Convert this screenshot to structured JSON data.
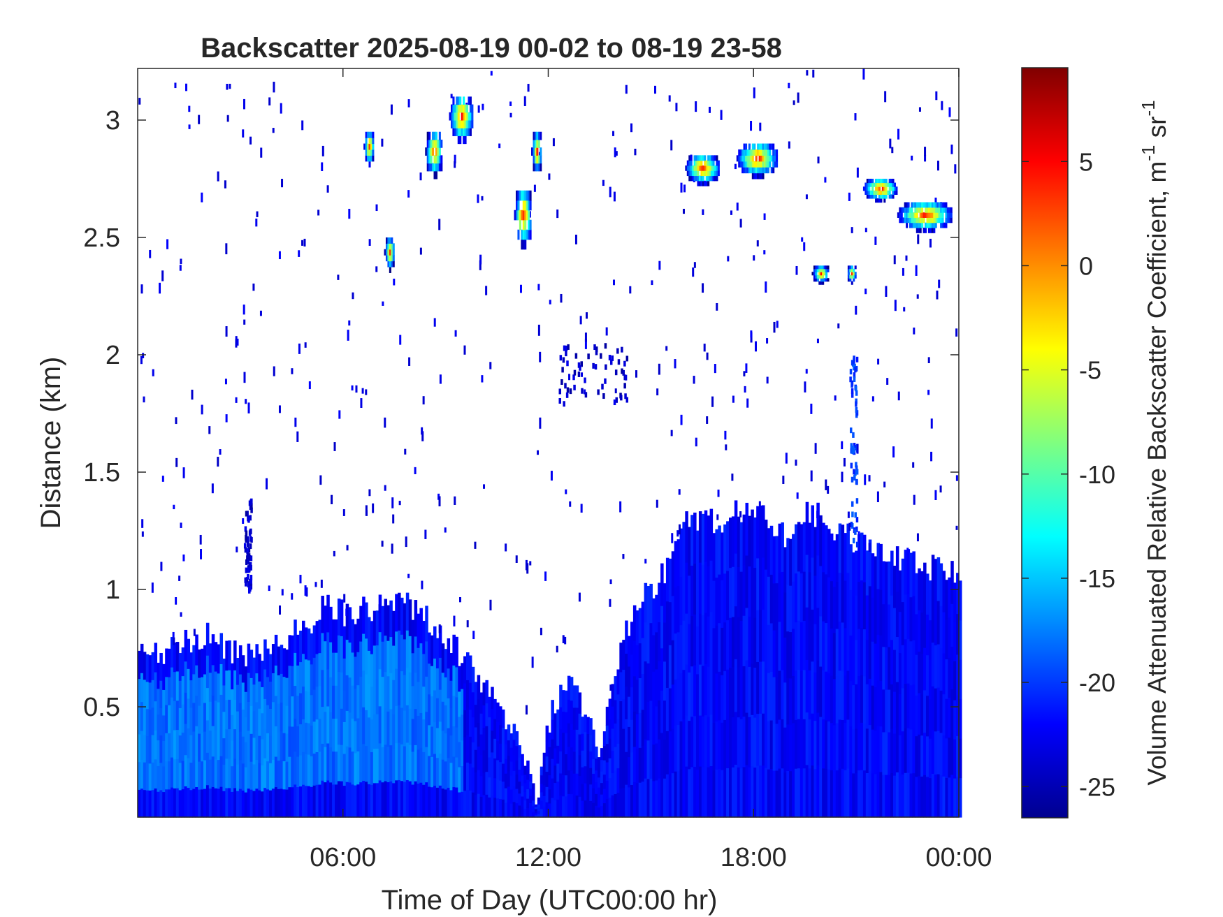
{
  "chart_data": {
    "type": "heatmap",
    "title": "Backscatter 2025-08-19 00-02 to 08-19 23-58",
    "xlabel": "Time of Day (UTC00:00 hr)",
    "ylabel": "Distance (km)",
    "colorbar_label": "Volume Attenuated Relative Backscatter Coefficient, m",
    "colorbar_label_sup1": "-1",
    "colorbar_label_mid": " sr",
    "colorbar_label_sup2": "-1",
    "colormap": "jet",
    "xlim_hours": [
      0,
      24
    ],
    "ylim_km": [
      0.03,
      3.22
    ],
    "clim": [
      -26.5,
      9.5
    ],
    "x_ticks": [
      {
        "hour": 6,
        "label": "06:00"
      },
      {
        "hour": 12,
        "label": "12:00"
      },
      {
        "hour": 18,
        "label": "18:00"
      },
      {
        "hour": 24,
        "label": "00:00"
      }
    ],
    "y_ticks": [
      {
        "km": 0.5,
        "label": "0.5"
      },
      {
        "km": 1,
        "label": "1"
      },
      {
        "km": 1.5,
        "label": "1.5"
      },
      {
        "km": 2,
        "label": "2"
      },
      {
        "km": 2.5,
        "label": "2.5"
      },
      {
        "km": 3,
        "label": "3"
      }
    ],
    "colorbar_ticks": [
      {
        "value": 5,
        "label": "5"
      },
      {
        "value": 0,
        "label": "0"
      },
      {
        "value": -5,
        "label": "-5"
      },
      {
        "value": -10,
        "label": "-10"
      },
      {
        "value": -15,
        "label": "-15"
      },
      {
        "value": -20,
        "label": "-20"
      },
      {
        "value": -25,
        "label": "-25"
      }
    ],
    "boundary_layer_top_km": [
      [
        0.0,
        0.72
      ],
      [
        1.0,
        0.75
      ],
      [
        2.0,
        0.8
      ],
      [
        3.0,
        0.72
      ],
      [
        4.0,
        0.78
      ],
      [
        5.0,
        0.85
      ],
      [
        5.5,
        0.95
      ],
      [
        6.0,
        0.9
      ],
      [
        7.0,
        0.93
      ],
      [
        8.0,
        0.93
      ],
      [
        9.0,
        0.8
      ],
      [
        10.0,
        0.6
      ],
      [
        11.0,
        0.4
      ],
      [
        11.6,
        0.1
      ],
      [
        12.0,
        0.45
      ],
      [
        12.5,
        0.6
      ],
      [
        13.0,
        0.5
      ],
      [
        13.5,
        0.3
      ],
      [
        14.0,
        0.7
      ],
      [
        14.5,
        0.95
      ],
      [
        15.0,
        1.0
      ],
      [
        15.5,
        1.1
      ],
      [
        16.0,
        1.3
      ],
      [
        17.0,
        1.3
      ],
      [
        18.0,
        1.35
      ],
      [
        19.0,
        1.2
      ],
      [
        19.5,
        1.35
      ],
      [
        20.0,
        1.3
      ],
      [
        21.0,
        1.2
      ],
      [
        22.0,
        1.15
      ],
      [
        23.0,
        1.1
      ],
      [
        24.0,
        1.05
      ]
    ],
    "boundary_layer_value": -22,
    "boundary_layer_bright_value": -18,
    "cloud_patches": [
      {
        "t0": 6.6,
        "t1": 6.9,
        "h0": 2.8,
        "h1": 2.95,
        "peak": 4
      },
      {
        "t0": 7.2,
        "t1": 7.5,
        "h0": 2.35,
        "h1": 2.5,
        "peak": 3
      },
      {
        "t0": 8.4,
        "t1": 8.9,
        "h0": 2.75,
        "h1": 2.95,
        "peak": 4
      },
      {
        "t0": 9.1,
        "t1": 9.8,
        "h0": 2.9,
        "h1": 3.1,
        "peak": 5
      },
      {
        "t0": 11.0,
        "t1": 11.5,
        "h0": 2.45,
        "h1": 2.7,
        "peak": 5
      },
      {
        "t0": 11.5,
        "t1": 11.8,
        "h0": 2.75,
        "h1": 2.95,
        "peak": 3
      },
      {
        "t0": 16.0,
        "t1": 17.0,
        "h0": 2.72,
        "h1": 2.85,
        "peak": 5
      },
      {
        "t0": 17.5,
        "t1": 18.7,
        "h0": 2.75,
        "h1": 2.9,
        "peak": 5
      },
      {
        "t0": 19.7,
        "t1": 20.2,
        "h0": 2.3,
        "h1": 2.38,
        "peak": 3
      },
      {
        "t0": 20.7,
        "t1": 21.0,
        "h0": 2.3,
        "h1": 2.38,
        "peak": 2
      },
      {
        "t0": 21.2,
        "t1": 22.2,
        "h0": 2.65,
        "h1": 2.75,
        "peak": 5
      },
      {
        "t0": 22.2,
        "t1": 23.8,
        "h0": 2.52,
        "h1": 2.65,
        "peak": 5
      }
    ],
    "sparse_features": [
      {
        "t0": 12.3,
        "t1": 14.3,
        "h0": 1.8,
        "h1": 2.05,
        "value": -24
      },
      {
        "t0": 20.8,
        "t1": 21.0,
        "h0": 1.2,
        "h1": 2.0,
        "value": -20
      },
      {
        "t0": 3.1,
        "t1": 3.3,
        "h0": 1.0,
        "h1": 1.4,
        "value": -24
      }
    ],
    "grid": false
  }
}
